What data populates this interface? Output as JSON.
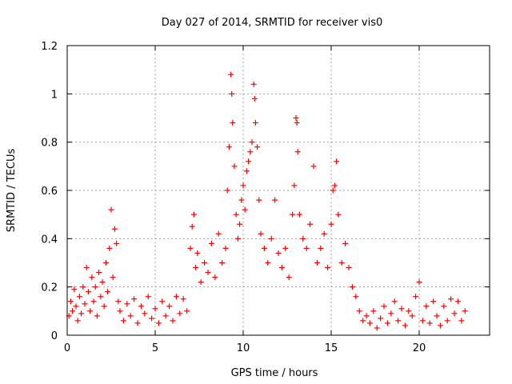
{
  "chart_data": {
    "type": "scatter",
    "title": "Day 027 of 2014, SRMTID for receiver vis0",
    "xlabel": "GPS time / hours",
    "ylabel": "SRMTID / TECUs",
    "xlim": [
      0,
      24
    ],
    "ylim": [
      0,
      1.2
    ],
    "xticks": [
      0,
      5,
      10,
      15,
      20
    ],
    "yticks": [
      0,
      0.2,
      0.4,
      0.6,
      0.8,
      1,
      1.2
    ],
    "xtick_labels": [
      "0",
      "5",
      "10",
      "15",
      "20"
    ],
    "ytick_labels": [
      "0",
      "0.2",
      "0.4",
      "0.6",
      "0.8",
      "1",
      "1.2"
    ],
    "grid": true,
    "marker": "+",
    "series": [
      {
        "name": "SRMTID",
        "color": "#ff0000",
        "points": [
          [
            0.1,
            0.08
          ],
          [
            0.2,
            0.14
          ],
          [
            0.3,
            0.1
          ],
          [
            0.4,
            0.19
          ],
          [
            0.5,
            0.12
          ],
          [
            0.6,
            0.06
          ],
          [
            0.7,
            0.16
          ],
          [
            0.8,
            0.09
          ],
          [
            0.9,
            0.2
          ],
          [
            1.0,
            0.13
          ],
          [
            1.1,
            0.28
          ],
          [
            1.2,
            0.18
          ],
          [
            1.3,
            0.1
          ],
          [
            1.4,
            0.24
          ],
          [
            1.5,
            0.14
          ],
          [
            1.6,
            0.2
          ],
          [
            1.7,
            0.08
          ],
          [
            1.8,
            0.26
          ],
          [
            1.9,
            0.16
          ],
          [
            2.0,
            0.22
          ],
          [
            2.1,
            0.12
          ],
          [
            2.2,
            0.3
          ],
          [
            2.3,
            0.18
          ],
          [
            2.4,
            0.36
          ],
          [
            2.5,
            0.52
          ],
          [
            2.6,
            0.24
          ],
          [
            2.7,
            0.44
          ],
          [
            2.8,
            0.38
          ],
          [
            2.9,
            0.14
          ],
          [
            3.0,
            0.1
          ],
          [
            3.2,
            0.06
          ],
          [
            3.4,
            0.13
          ],
          [
            3.6,
            0.08
          ],
          [
            3.8,
            0.15
          ],
          [
            4.0,
            0.05
          ],
          [
            4.2,
            0.12
          ],
          [
            4.4,
            0.09
          ],
          [
            4.6,
            0.16
          ],
          [
            4.8,
            0.07
          ],
          [
            5.0,
            0.11
          ],
          [
            5.2,
            0.05
          ],
          [
            5.4,
            0.14
          ],
          [
            5.6,
            0.08
          ],
          [
            5.8,
            0.12
          ],
          [
            6.0,
            0.06
          ],
          [
            6.2,
            0.16
          ],
          [
            6.4,
            0.09
          ],
          [
            6.6,
            0.15
          ],
          [
            6.8,
            0.1
          ],
          [
            7.0,
            0.36
          ],
          [
            7.1,
            0.45
          ],
          [
            7.2,
            0.5
          ],
          [
            7.3,
            0.28
          ],
          [
            7.4,
            0.34
          ],
          [
            7.6,
            0.22
          ],
          [
            7.8,
            0.3
          ],
          [
            8.0,
            0.26
          ],
          [
            8.2,
            0.38
          ],
          [
            8.4,
            0.24
          ],
          [
            8.6,
            0.42
          ],
          [
            8.8,
            0.3
          ],
          [
            9.0,
            0.36
          ],
          [
            9.1,
            0.6
          ],
          [
            9.2,
            0.78
          ],
          [
            9.3,
            1.08
          ],
          [
            9.35,
            1.0
          ],
          [
            9.4,
            0.88
          ],
          [
            9.5,
            0.7
          ],
          [
            9.6,
            0.5
          ],
          [
            9.7,
            0.4
          ],
          [
            9.8,
            0.46
          ],
          [
            9.9,
            0.56
          ],
          [
            10.0,
            0.62
          ],
          [
            10.1,
            0.52
          ],
          [
            10.2,
            0.68
          ],
          [
            10.3,
            0.72
          ],
          [
            10.4,
            0.76
          ],
          [
            10.5,
            0.8
          ],
          [
            10.6,
            1.04
          ],
          [
            10.65,
            0.98
          ],
          [
            10.7,
            0.88
          ],
          [
            10.8,
            0.78
          ],
          [
            10.9,
            0.56
          ],
          [
            11.0,
            0.42
          ],
          [
            11.2,
            0.36
          ],
          [
            11.4,
            0.3
          ],
          [
            11.6,
            0.4
          ],
          [
            11.8,
            0.56
          ],
          [
            12.0,
            0.34
          ],
          [
            12.2,
            0.28
          ],
          [
            12.4,
            0.36
          ],
          [
            12.6,
            0.24
          ],
          [
            12.8,
            0.5
          ],
          [
            12.9,
            0.62
          ],
          [
            13.0,
            0.9
          ],
          [
            13.05,
            0.88
          ],
          [
            13.1,
            0.76
          ],
          [
            13.2,
            0.5
          ],
          [
            13.4,
            0.4
          ],
          [
            13.6,
            0.36
          ],
          [
            13.8,
            0.46
          ],
          [
            14.0,
            0.7
          ],
          [
            14.2,
            0.3
          ],
          [
            14.4,
            0.36
          ],
          [
            14.6,
            0.42
          ],
          [
            14.8,
            0.28
          ],
          [
            15.0,
            0.46
          ],
          [
            15.1,
            0.6
          ],
          [
            15.2,
            0.62
          ],
          [
            15.3,
            0.72
          ],
          [
            15.4,
            0.5
          ],
          [
            15.6,
            0.3
          ],
          [
            15.8,
            0.38
          ],
          [
            16.0,
            0.28
          ],
          [
            16.2,
            0.2
          ],
          [
            16.4,
            0.16
          ],
          [
            16.6,
            0.1
          ],
          [
            16.8,
            0.06
          ],
          [
            17.0,
            0.08
          ],
          [
            17.2,
            0.05
          ],
          [
            17.4,
            0.1
          ],
          [
            17.6,
            0.03
          ],
          [
            17.8,
            0.07
          ],
          [
            18.0,
            0.12
          ],
          [
            18.2,
            0.05
          ],
          [
            18.4,
            0.09
          ],
          [
            18.6,
            0.14
          ],
          [
            18.8,
            0.06
          ],
          [
            19.0,
            0.11
          ],
          [
            19.2,
            0.04
          ],
          [
            19.4,
            0.1
          ],
          [
            19.6,
            0.08
          ],
          [
            19.8,
            0.16
          ],
          [
            20.0,
            0.22
          ],
          [
            20.2,
            0.06
          ],
          [
            20.4,
            0.12
          ],
          [
            20.6,
            0.05
          ],
          [
            20.8,
            0.14
          ],
          [
            21.0,
            0.08
          ],
          [
            21.2,
            0.04
          ],
          [
            21.4,
            0.12
          ],
          [
            21.6,
            0.06
          ],
          [
            21.8,
            0.15
          ],
          [
            22.0,
            0.09
          ],
          [
            22.2,
            0.14
          ],
          [
            22.4,
            0.06
          ],
          [
            22.6,
            0.1
          ]
        ]
      }
    ]
  }
}
